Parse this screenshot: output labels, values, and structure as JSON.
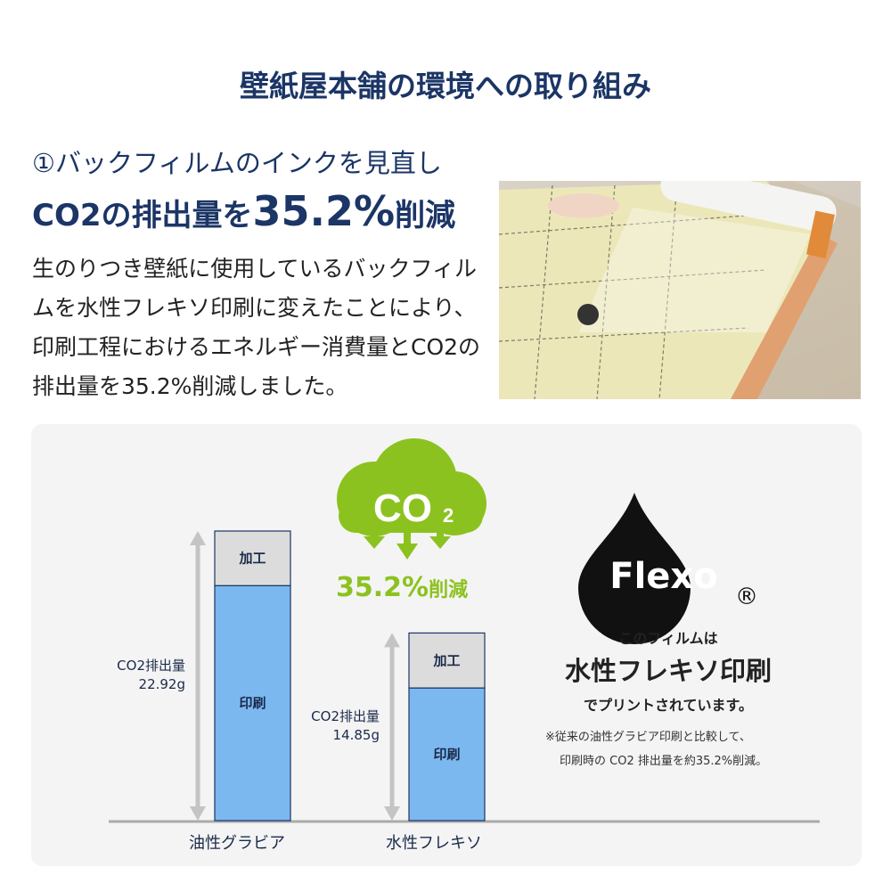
{
  "title": "壁紙屋本舗の環境への取り組み",
  "section": {
    "heading": "①バックフィルムのインクを見直し",
    "headline_prefix": "CO2の排出量を",
    "headline_value": "35.2%",
    "headline_suffix": "削減",
    "body": "生のりつき壁紙に使用しているバックフィルムを水性フレキソ印刷に変えたことにより、印刷工程におけるエネルギー消費量とCO2の排出量を35.2%削減しました。"
  },
  "badge": {
    "cloud_text": "CO",
    "cloud_sub": "2",
    "reduction_value": "35.2%",
    "reduction_suffix": "削減",
    "color": "#8cc21f"
  },
  "flexo": {
    "logo_text": "Flexo",
    "registered": "®",
    "line1": "このフィルムは",
    "line2": "水性フレキソ印刷",
    "line3": "でプリントされています。",
    "note1": "※従来の油性グラビア印刷と比較して、",
    "note2": "印刷時の CO2 排出量を約35.2%削減。"
  },
  "chart_data": {
    "type": "bar",
    "stacked": true,
    "categories": [
      "油性グラビア",
      "水性フレキソ"
    ],
    "series": [
      {
        "name": "印刷",
        "values": [
          18.6,
          10.5
        ],
        "color": "#7cb8f0"
      },
      {
        "name": "加工",
        "values": [
          4.3,
          4.35
        ],
        "color": "#dcdcdc"
      }
    ],
    "totals": [
      22.92,
      14.85
    ],
    "total_labels": [
      {
        "label": "CO2排出量",
        "value": "22.92g"
      },
      {
        "label": "CO2排出量",
        "value": "14.85g"
      }
    ],
    "ylim": [
      0,
      22.92
    ],
    "grid": false
  }
}
